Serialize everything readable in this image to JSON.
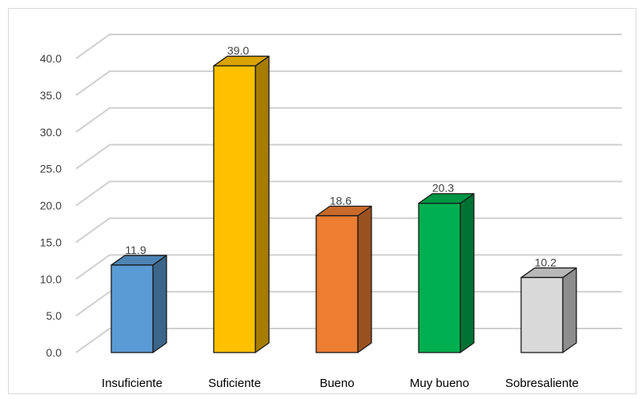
{
  "chart_data": {
    "type": "bar",
    "style": "3d-column",
    "categories": [
      "Insuficiente",
      "Suficiente",
      "Bueno",
      "Muy bueno",
      "Sobresaliente"
    ],
    "values": [
      11.9,
      39.0,
      18.6,
      20.3,
      10.2
    ],
    "data_labels": [
      "11.9",
      "39.0",
      "18.6",
      "20.3",
      "10.2"
    ],
    "colors": [
      "#5b9bd5",
      "#ffc000",
      "#ed7d31",
      "#00b050",
      "#d9d9d9"
    ],
    "ylim": [
      0,
      40
    ],
    "yticks": [
      "0.0",
      "5.0",
      "10.0",
      "15.0",
      "20.0",
      "25.0",
      "30.0",
      "35.0",
      "40.0"
    ],
    "grid": true,
    "legend": "none"
  }
}
